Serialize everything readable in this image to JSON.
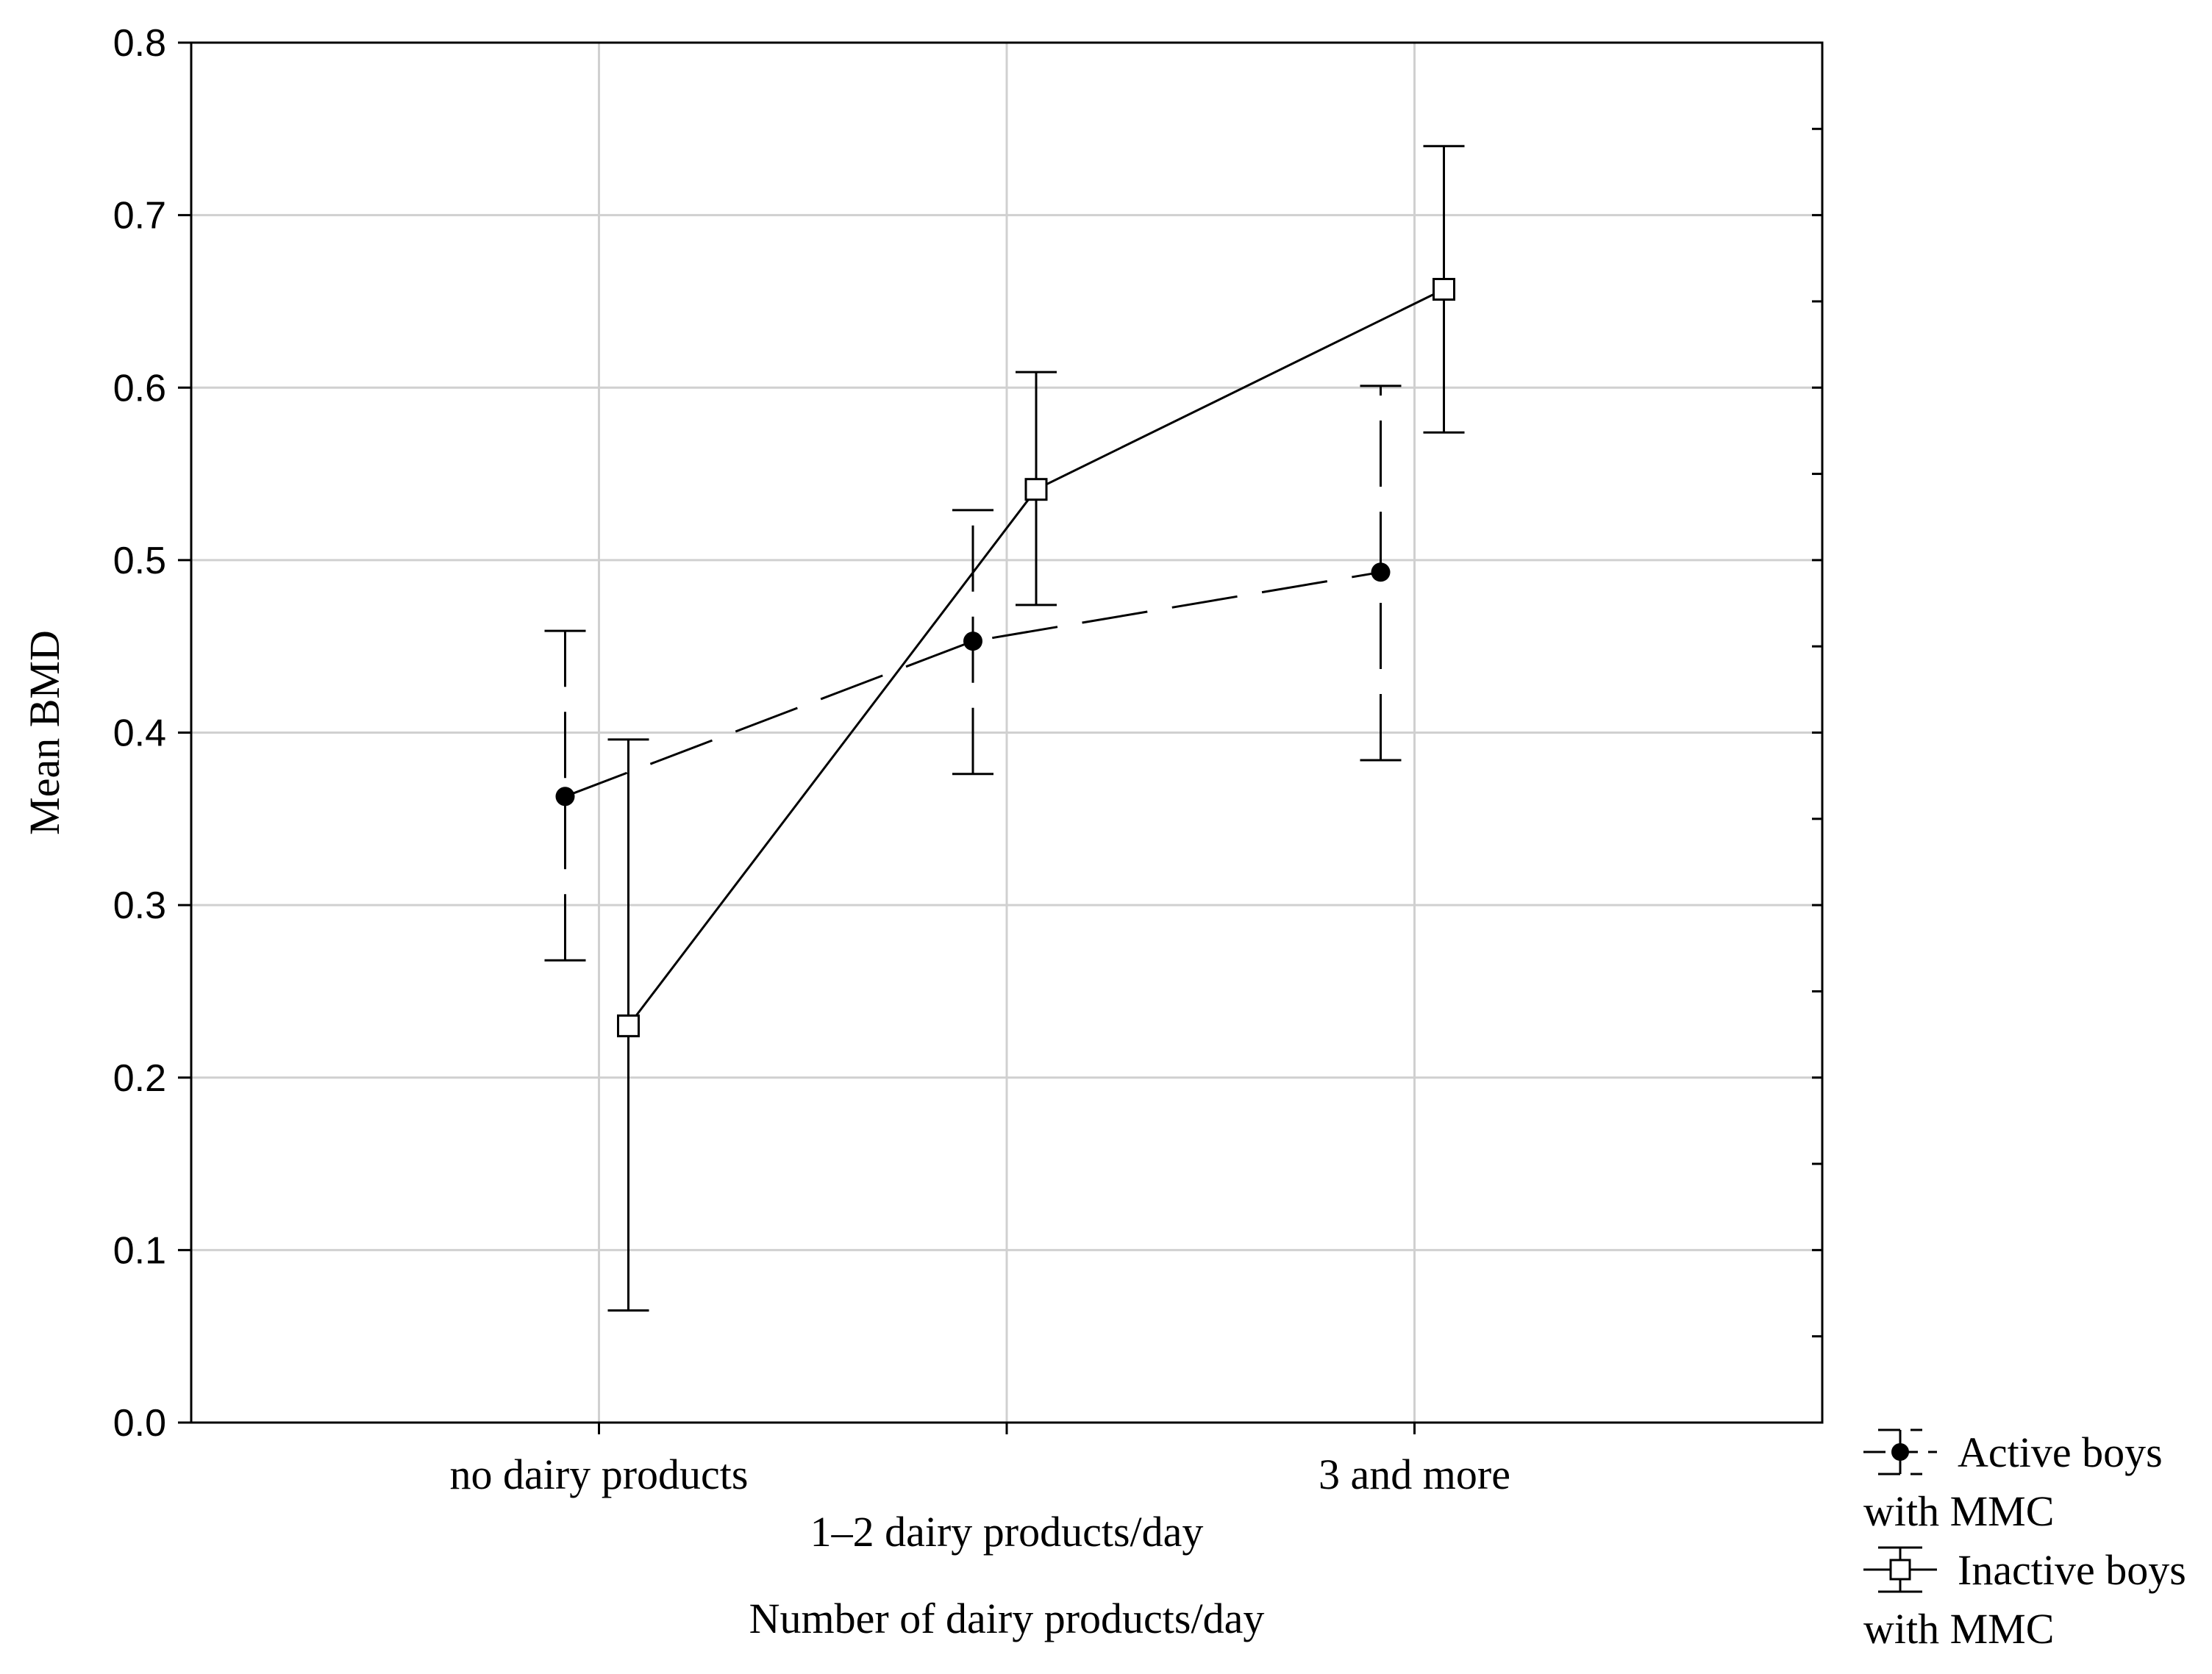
{
  "chart_data": {
    "type": "line",
    "title": "",
    "xlabel": "Number of dairy products/day",
    "ylabel": "Mean BMD",
    "categories": [
      "no dairy products",
      "1–2 dairy products/day",
      "3 and more"
    ],
    "ylim": [
      0.0,
      0.8
    ],
    "yticks": [
      "0.0",
      "0.1",
      "0.2",
      "0.3",
      "0.4",
      "0.5",
      "0.6",
      "0.7",
      "0.8"
    ],
    "grid": true,
    "legend_position": "bottom-right, outside plot",
    "series": [
      {
        "name": "Active boys with MMC",
        "legend_line1": "Active boys",
        "legend_line2": "with MMC",
        "line_style": "dashed",
        "marker": "filled-circle",
        "values": [
          0.363,
          0.453,
          0.493
        ],
        "lower": [
          0.268,
          0.376,
          0.384
        ],
        "upper": [
          0.459,
          0.529,
          0.601
        ]
      },
      {
        "name": "Inactive boys with MMC",
        "legend_line1": "Inactive boys",
        "legend_line2": "with MMC",
        "line_style": "solid",
        "marker": "open-square",
        "values": [
          0.23,
          0.541,
          0.657
        ],
        "lower": [
          0.065,
          0.474,
          0.574
        ],
        "upper": [
          0.396,
          0.609,
          0.74
        ]
      }
    ]
  },
  "colors": {
    "axis": "#000000",
    "grid": "#d0d0d0",
    "series": "#000000"
  }
}
